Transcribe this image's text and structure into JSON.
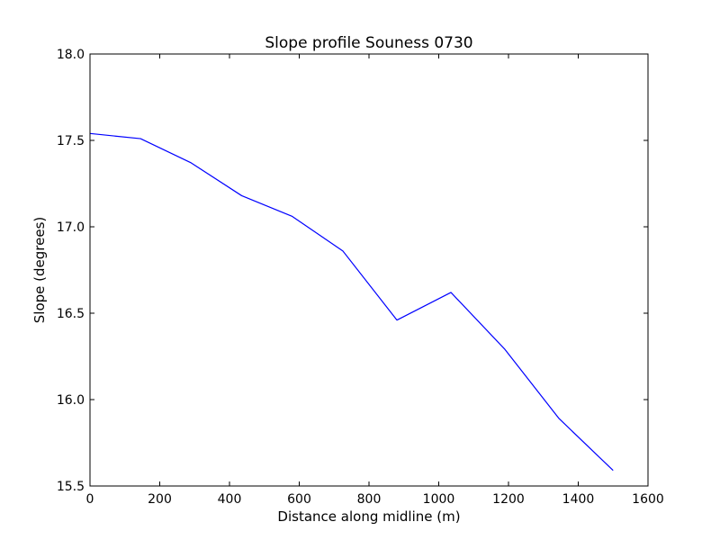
{
  "chart_data": {
    "type": "line",
    "title": "Slope profile Souness 0730",
    "xlabel": "Distance along midline (m)",
    "ylabel": "Slope (degrees)",
    "xlim": [
      0,
      1600
    ],
    "ylim": [
      15.5,
      18.0
    ],
    "xticks": [
      0,
      200,
      400,
      600,
      800,
      1000,
      1200,
      1400,
      1600
    ],
    "yticks": [
      15.5,
      16.0,
      16.5,
      17.0,
      17.5,
      18.0
    ],
    "xtick_labels": [
      "0",
      "200",
      "400",
      "600",
      "800",
      "1000",
      "1200",
      "1400",
      "1600"
    ],
    "ytick_labels": [
      "15.5",
      "16.0",
      "16.5",
      "17.0",
      "17.5",
      "18.0"
    ],
    "grid": false,
    "series": [
      {
        "color": "#0000ff",
        "x": [
          0,
          145,
          290,
          435,
          580,
          725,
          880,
          1035,
          1190,
          1345,
          1500
        ],
        "y": [
          17.54,
          17.51,
          17.37,
          17.18,
          17.06,
          16.86,
          16.46,
          16.62,
          16.29,
          15.89,
          15.59
        ]
      }
    ]
  }
}
